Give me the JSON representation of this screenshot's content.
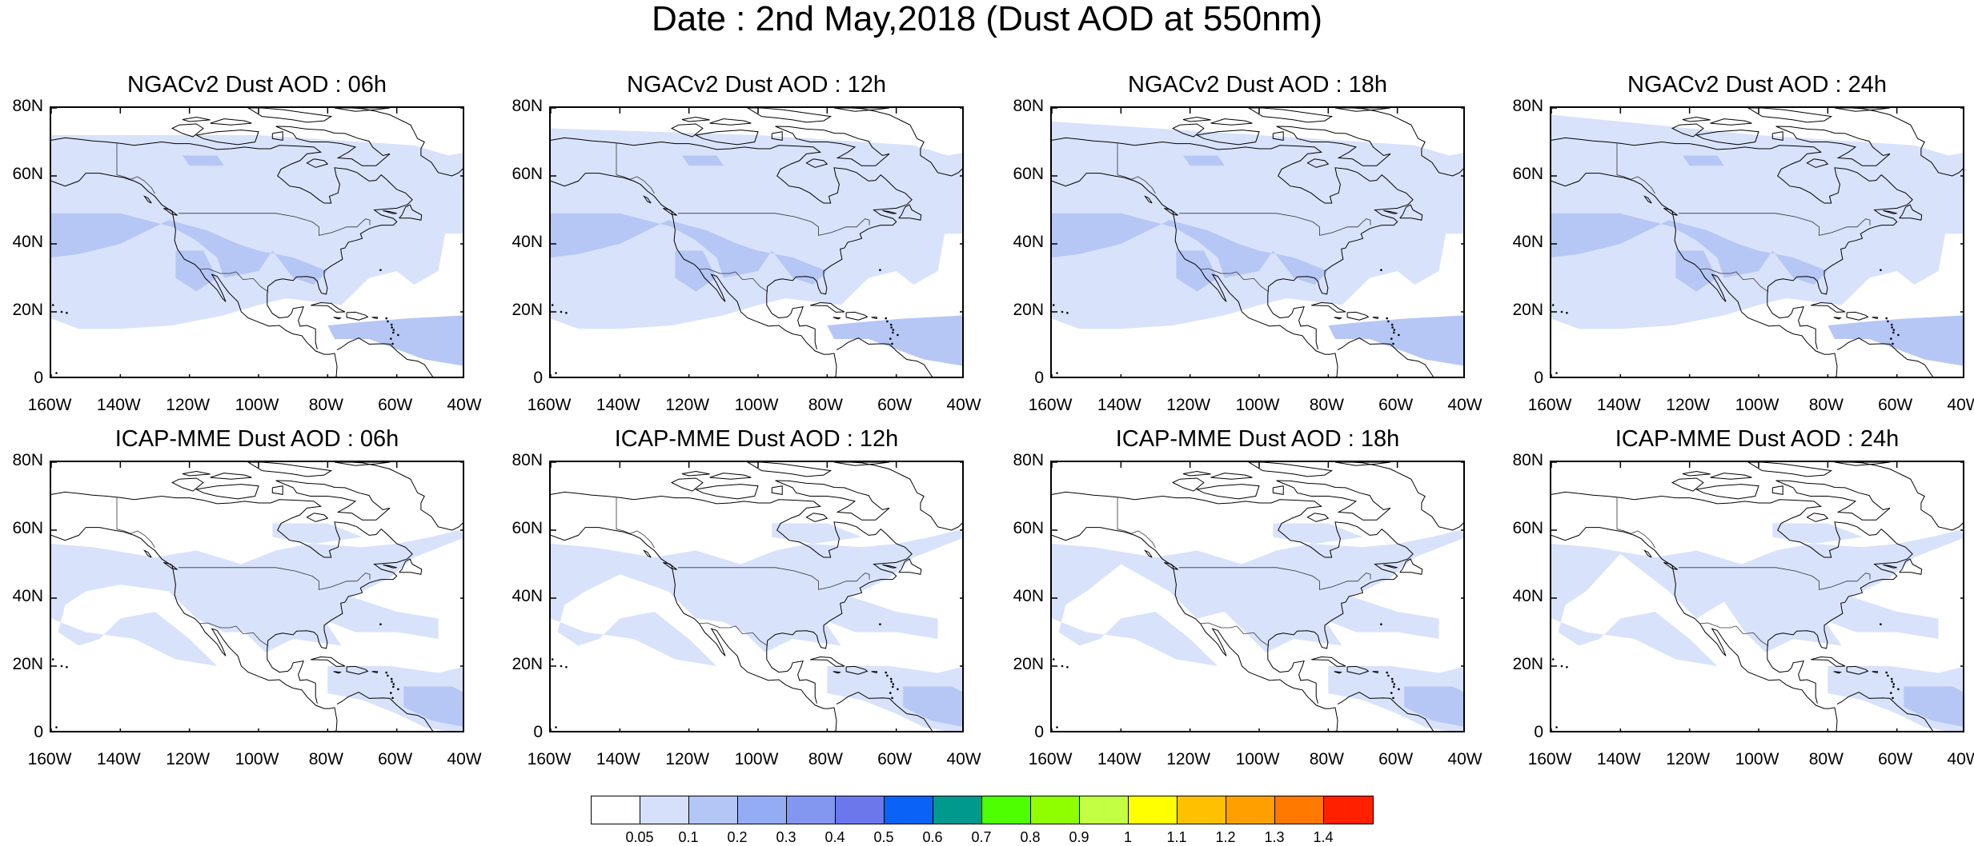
{
  "main_title": "Date : 2nd May,2018 (Dust AOD at 550nm)",
  "panels": [
    {
      "title": "NGACv2 Dust AOD : 06h",
      "model": "NGACv2",
      "hour": "06h"
    },
    {
      "title": "NGACv2 Dust AOD : 12h",
      "model": "NGACv2",
      "hour": "12h"
    },
    {
      "title": "NGACv2 Dust AOD : 18h",
      "model": "NGACv2",
      "hour": "18h"
    },
    {
      "title": "NGACv2 Dust AOD : 24h",
      "model": "NGACv2",
      "hour": "24h"
    },
    {
      "title": "ICAP-MME Dust AOD : 06h",
      "model": "ICAP-MME",
      "hour": "06h"
    },
    {
      "title": "ICAP-MME Dust AOD : 12h",
      "model": "ICAP-MME",
      "hour": "12h"
    },
    {
      "title": "ICAP-MME Dust AOD : 18h",
      "model": "ICAP-MME",
      "hour": "18h"
    },
    {
      "title": "ICAP-MME Dust AOD : 24h",
      "model": "ICAP-MME",
      "hour": "24h"
    }
  ],
  "axes": {
    "lat_ticks": [
      "80N",
      "60N",
      "40N",
      "20N",
      "0"
    ],
    "lon_ticks": [
      "160W",
      "140W",
      "120W",
      "100W",
      "80W",
      "60W",
      "40W"
    ],
    "lon_range": [
      -160,
      -40
    ],
    "lat_range": [
      0,
      80
    ]
  },
  "colorbar": {
    "labels": [
      "0.05",
      "0.1",
      "0.2",
      "0.3",
      "0.4",
      "0.5",
      "0.6",
      "0.7",
      "0.8",
      "0.9",
      "1",
      "1.1",
      "1.2",
      "1.3",
      "1.4"
    ],
    "colors": [
      "#ffffff",
      "#d6e0fb",
      "#b4c6f6",
      "#93acf3",
      "#8396f0",
      "#6c77ec",
      "#0a62f7",
      "#00998e",
      "#4dff00",
      "#8fff00",
      "#c3ff43",
      "#ffff00",
      "#ffc000",
      "#ffa000",
      "#ff7800",
      "#ff2000"
    ]
  },
  "field_colors": {
    "light": "#d8e2fb",
    "medium": "#b6c7f5"
  }
}
